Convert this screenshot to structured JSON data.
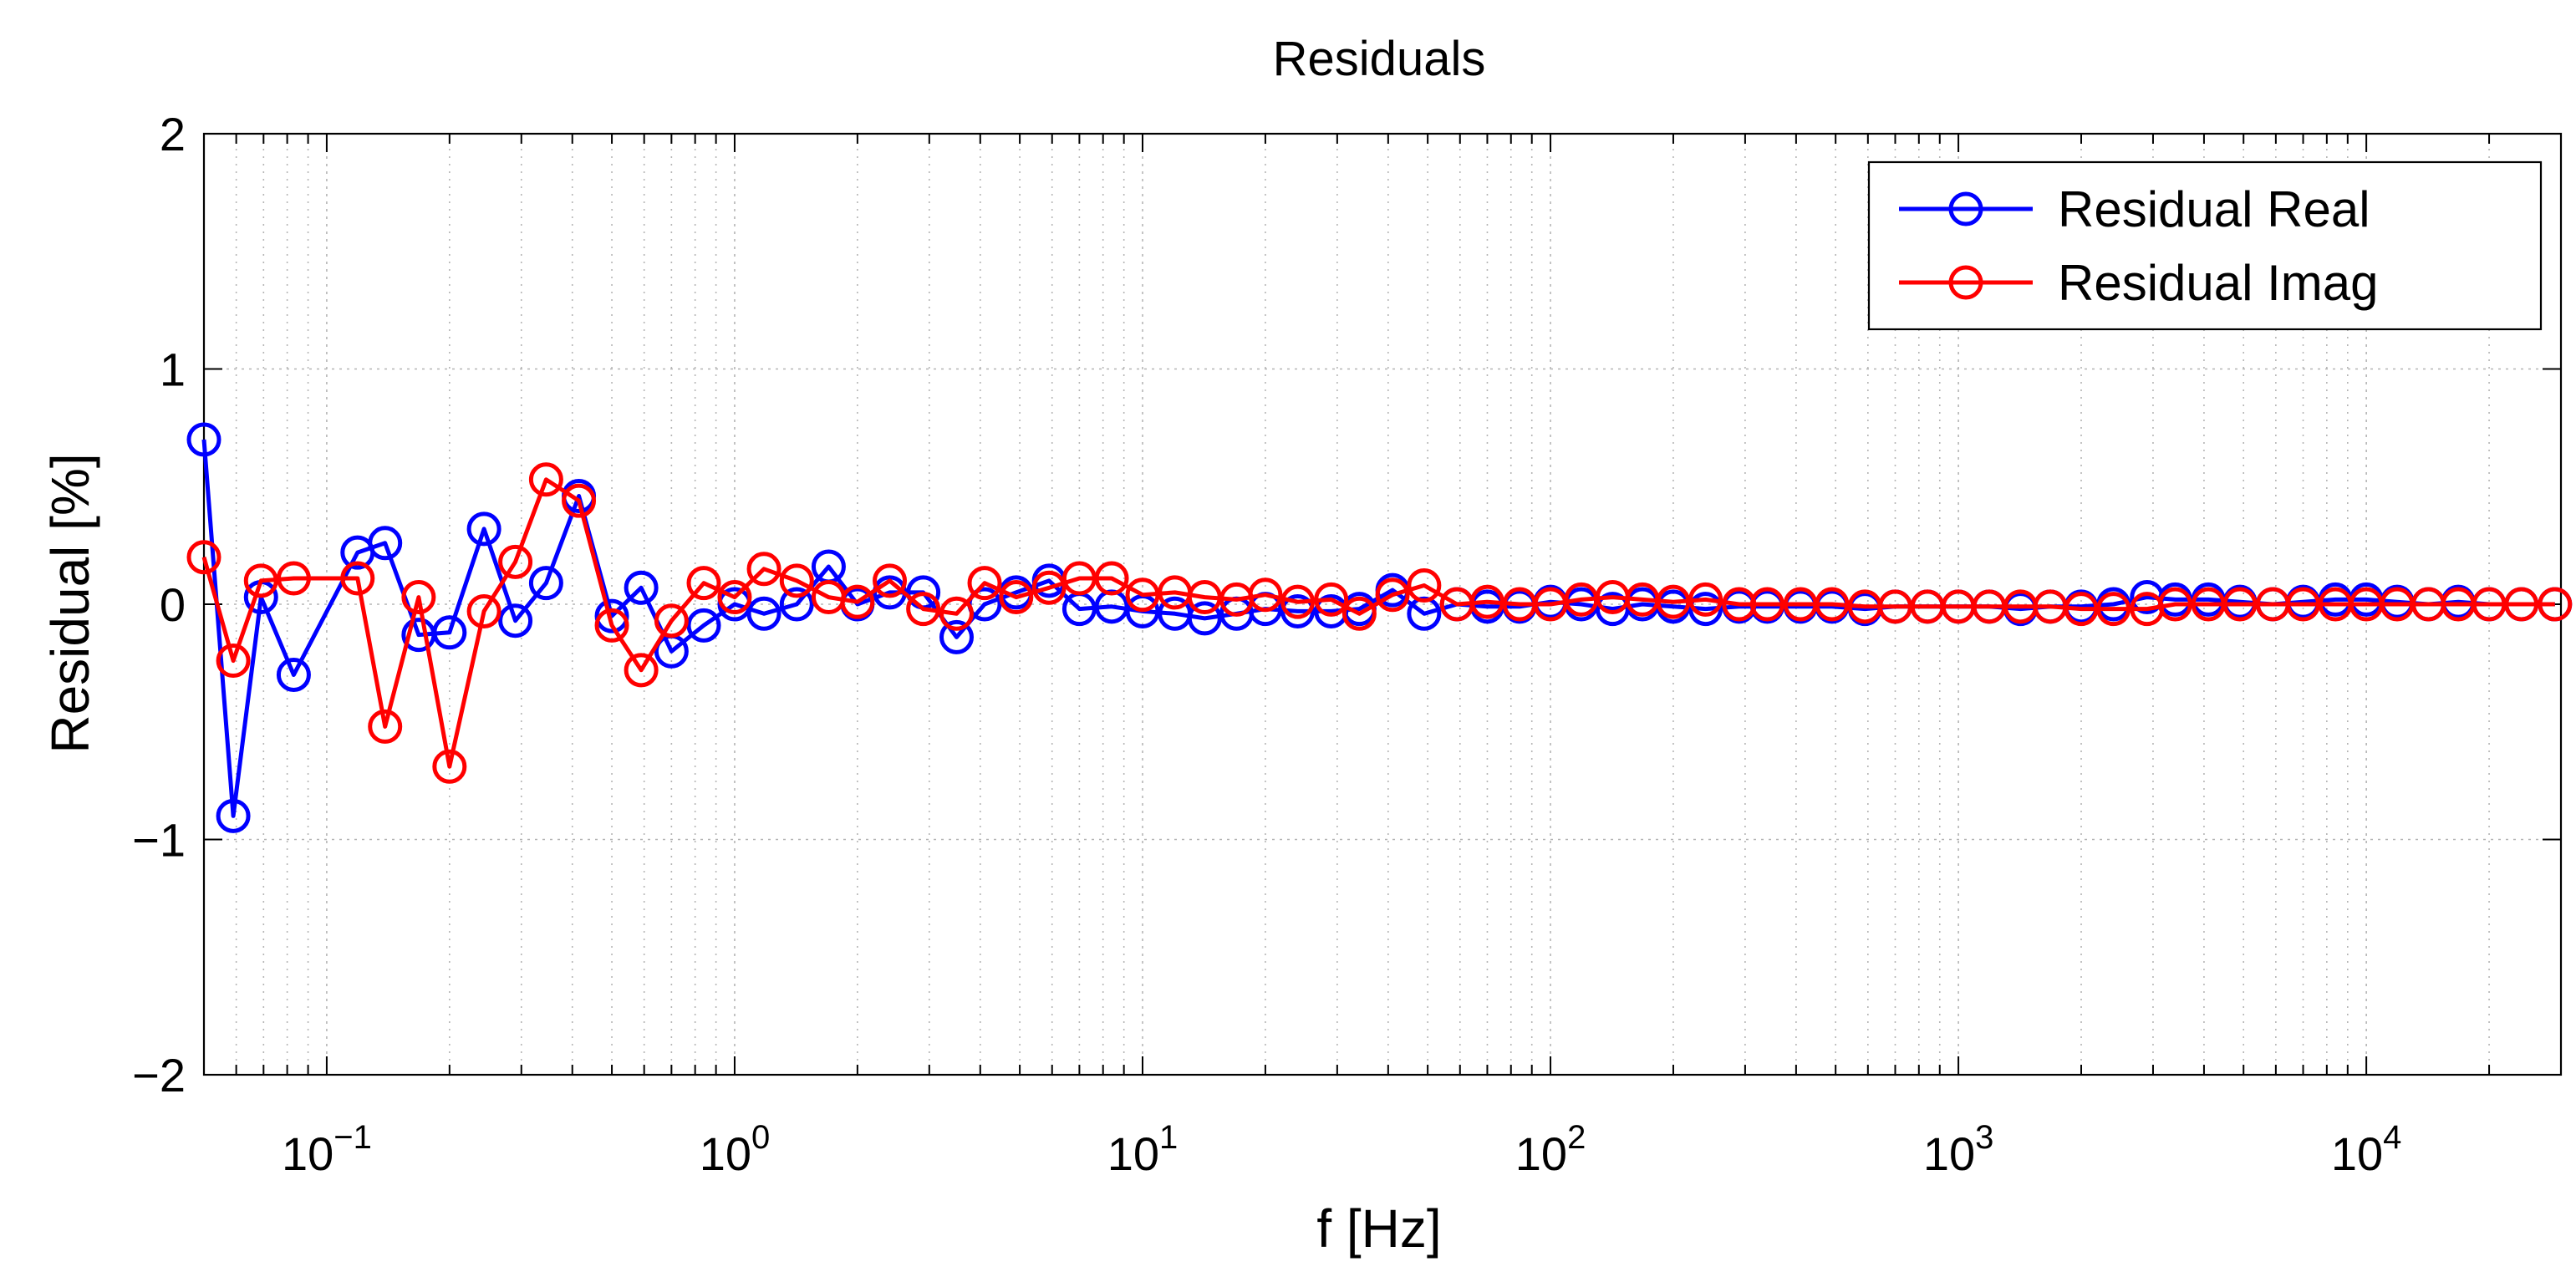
{
  "chart_data": {
    "type": "line",
    "title": "Residuals",
    "xlabel": "f [Hz]",
    "ylabel": "Residual [%]",
    "xscale": "log",
    "xlim": [
      0.05,
      30000
    ],
    "ylim": [
      -2,
      2
    ],
    "grid": true,
    "legend_position": "top-right",
    "x_ticks": [
      {
        "value": 0.1,
        "base": "10",
        "exp": "−1"
      },
      {
        "value": 1,
        "base": "10",
        "exp": "0"
      },
      {
        "value": 10,
        "base": "10",
        "exp": "1"
      },
      {
        "value": 100,
        "base": "10",
        "exp": "2"
      },
      {
        "value": 1000,
        "base": "10",
        "exp": "3"
      },
      {
        "value": 10000,
        "base": "10",
        "exp": "4"
      }
    ],
    "y_ticks": [
      {
        "value": 2,
        "label": "2"
      },
      {
        "value": 1,
        "label": "1"
      },
      {
        "value": 0,
        "label": "0"
      },
      {
        "value": -1,
        "label": "−1"
      },
      {
        "value": -2,
        "label": "−2"
      }
    ],
    "series": [
      {
        "name": "Residual Real",
        "color": "#0000ff",
        "x": [
          0.05,
          0.059,
          0.069,
          0.083,
          0.119,
          0.139,
          0.168,
          0.2,
          0.243,
          0.29,
          0.345,
          0.415,
          0.5,
          0.59,
          0.7,
          0.84,
          1.0,
          1.18,
          1.42,
          1.7,
          2.0,
          2.4,
          2.9,
          3.5,
          4.1,
          4.9,
          5.9,
          7.0,
          8.4,
          10.0,
          12.0,
          14.2,
          17.0,
          20.0,
          24.0,
          29.0,
          34.0,
          41.0,
          49.0,
          59.0,
          70.0,
          84.0,
          100,
          119,
          142,
          168,
          200,
          240,
          290,
          340,
          410,
          490,
          590,
          700,
          840,
          1000,
          1190,
          1420,
          1680,
          2000,
          2400,
          2900,
          3400,
          4100,
          4900,
          5900,
          7000,
          8400,
          10000,
          11900,
          14200,
          16800,
          20000,
          24000,
          29000
        ],
        "y": [
          0.7,
          -0.9,
          0.03,
          -0.3,
          0.22,
          0.26,
          -0.13,
          -0.12,
          0.32,
          -0.07,
          0.09,
          0.46,
          -0.05,
          0.07,
          -0.2,
          -0.09,
          0.0,
          -0.04,
          0.0,
          0.16,
          0.0,
          0.05,
          0.05,
          -0.14,
          0.0,
          0.05,
          0.1,
          -0.02,
          -0.01,
          -0.03,
          -0.04,
          -0.06,
          -0.04,
          -0.02,
          -0.03,
          -0.03,
          -0.02,
          0.06,
          -0.04,
          0.0,
          -0.01,
          -0.01,
          0.01,
          0.0,
          -0.02,
          0.0,
          -0.01,
          -0.02,
          -0.01,
          -0.01,
          -0.01,
          -0.01,
          -0.02,
          -0.01,
          -0.01,
          -0.01,
          -0.01,
          -0.02,
          -0.01,
          -0.01,
          0.0,
          0.03,
          0.02,
          0.02,
          0.01,
          0.0,
          0.01,
          0.02,
          0.02,
          0.01,
          0.0,
          0.01,
          0.0,
          0.0,
          0.0
        ]
      },
      {
        "name": "Residual Imag",
        "color": "#ff0000",
        "x": [
          0.05,
          0.059,
          0.069,
          0.083,
          0.119,
          0.139,
          0.168,
          0.2,
          0.243,
          0.29,
          0.345,
          0.415,
          0.5,
          0.59,
          0.7,
          0.84,
          1.0,
          1.18,
          1.42,
          1.7,
          2.0,
          2.4,
          2.9,
          3.5,
          4.1,
          4.9,
          5.9,
          7.0,
          8.4,
          10.0,
          12.0,
          14.2,
          17.0,
          20.0,
          24.0,
          29.0,
          34.0,
          41.0,
          49.0,
          59.0,
          70.0,
          84.0,
          100,
          119,
          142,
          168,
          200,
          240,
          290,
          340,
          410,
          490,
          590,
          700,
          840,
          1000,
          1190,
          1420,
          1680,
          2000,
          2400,
          2900,
          3400,
          4100,
          4900,
          5900,
          7000,
          8400,
          10000,
          11900,
          14200,
          16800,
          20000,
          24000,
          29000
        ],
        "y": [
          0.2,
          -0.24,
          0.1,
          0.11,
          0.11,
          -0.52,
          0.03,
          -0.69,
          -0.03,
          0.18,
          0.53,
          0.44,
          -0.09,
          -0.28,
          -0.07,
          0.09,
          0.03,
          0.15,
          0.1,
          0.03,
          0.01,
          0.1,
          -0.02,
          -0.04,
          0.09,
          0.03,
          0.07,
          0.11,
          0.11,
          0.04,
          0.05,
          0.03,
          0.02,
          0.04,
          0.01,
          0.02,
          -0.04,
          0.04,
          0.08,
          0.0,
          0.01,
          0.0,
          0.0,
          0.02,
          0.03,
          0.02,
          0.01,
          0.02,
          0.0,
          0.0,
          0.0,
          0.0,
          -0.01,
          -0.01,
          -0.01,
          -0.01,
          -0.01,
          -0.01,
          -0.01,
          -0.02,
          -0.02,
          -0.02,
          0.0,
          0.0,
          0.0,
          0.0,
          0.0,
          0.0,
          0.0,
          0.0,
          0.0,
          0.0,
          0.0,
          0.0,
          0.0
        ]
      }
    ]
  }
}
